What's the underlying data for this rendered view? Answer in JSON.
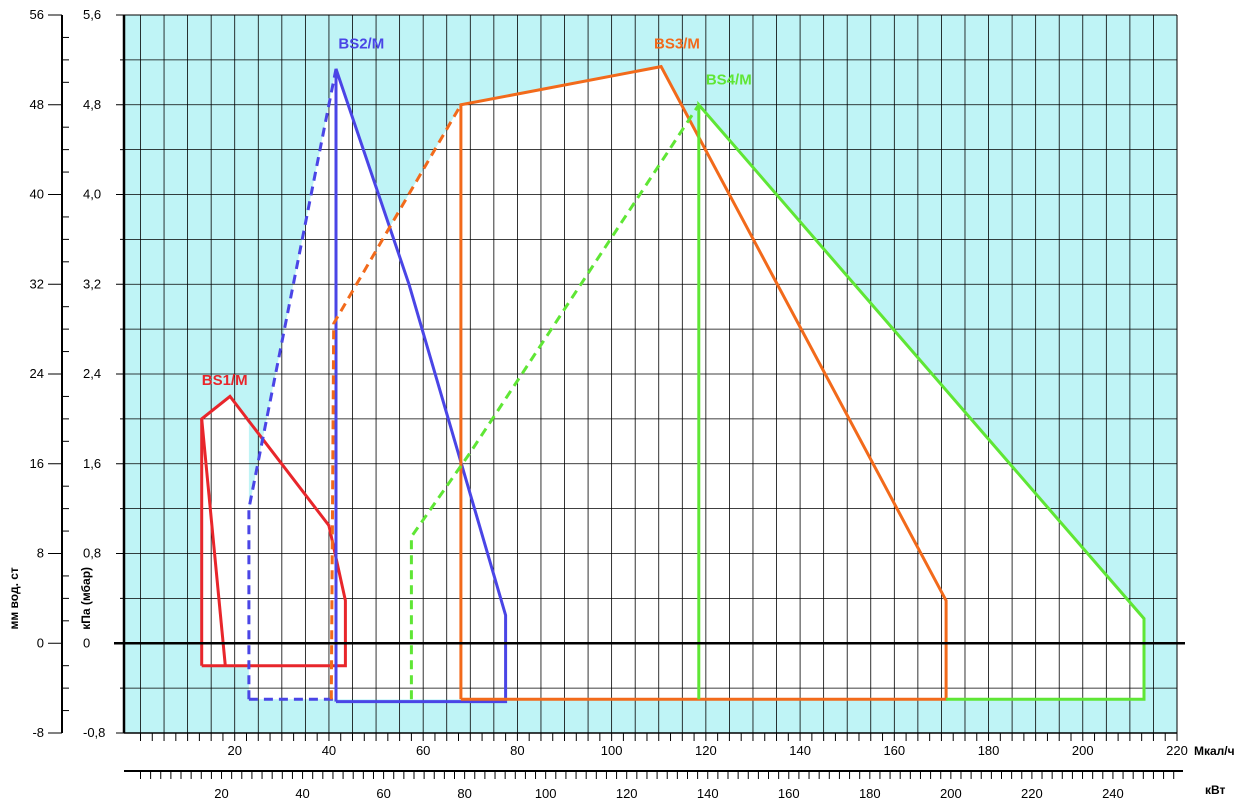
{
  "chart_data": {
    "type": "line",
    "x_primary": {
      "unit": "Мкал/ч",
      "range": [
        -3.5,
        220
      ],
      "ticks": [
        20,
        40,
        60,
        80,
        100,
        120,
        140,
        160,
        180,
        200
      ],
      "end_label": "220"
    },
    "x_secondary": {
      "unit": "кВт",
      "ticks": [
        20,
        40,
        60,
        80,
        100,
        120,
        140,
        160,
        180,
        200,
        220,
        240
      ]
    },
    "y_primary": {
      "label": "кПа (мбар)",
      "range": [
        -0.8,
        5.6
      ],
      "ticks": [
        "-0,8",
        "0",
        "0,8",
        "1,6",
        "2,4",
        "3,2",
        "4,0",
        "4,8",
        "5,6"
      ]
    },
    "y_secondary": {
      "label": "мм вод. ст",
      "ticks": [
        "-8",
        "0",
        "8",
        "16",
        "24",
        "32",
        "40",
        "48",
        "56"
      ]
    },
    "grid": true,
    "background_color": "#bff4f6",
    "series": [
      {
        "name": "BS1/M",
        "color": "#e8262b",
        "label_at": [
          13,
          2.3
        ],
        "solid": [
          [
            [
              13,
              -0.2
            ],
            [
              13,
              2.0
            ],
            [
              19,
              2.2
            ],
            [
              40,
              1.05
            ],
            [
              43.5,
              0.38
            ],
            [
              43.5,
              -0.2
            ],
            [
              13,
              -0.2
            ]
          ],
          [
            [
              13,
              2.0
            ],
            [
              18,
              -0.2
            ]
          ]
        ],
        "dashed": []
      },
      {
        "name": "BS2/M",
        "color": "#4a45e6",
        "label_at": [
          42,
          5.3
        ],
        "solid": [
          [
            [
              41.5,
              -0.52
            ],
            [
              41.5,
              5.12
            ],
            [
              57,
              3.2
            ],
            [
              77.5,
              0.25
            ],
            [
              77.5,
              -0.52
            ],
            [
              41.5,
              -0.52
            ]
          ]
        ],
        "dashed": [
          [
            [
              23,
              -0.5
            ],
            [
              23,
              1.2
            ],
            [
              41.5,
              5.12
            ]
          ],
          [
            [
              23,
              -0.5
            ],
            [
              41.5,
              -0.5
            ]
          ]
        ]
      },
      {
        "name": "BS3/M",
        "color": "#f26a1b",
        "label_at": [
          109,
          5.3
        ],
        "solid": [
          [
            [
              68,
              -0.5
            ],
            [
              68,
              4.8
            ],
            [
              110.5,
              5.14
            ],
            [
              171,
              0.38
            ],
            [
              171,
              -0.5
            ],
            [
              68,
              -0.5
            ]
          ]
        ],
        "dashed": [
          [
            [
              40.5,
              -0.5
            ],
            [
              41,
              2.85
            ],
            [
              68,
              4.8
            ]
          ]
        ]
      },
      {
        "name": "BS4/M",
        "color": "#5fe635",
        "label_at": [
          120,
          4.98
        ],
        "solid": [
          [
            [
              118.5,
              -0.5
            ],
            [
              118.5,
              4.8
            ],
            [
              213,
              0.22
            ],
            [
              213,
              -0.5
            ],
            [
              171,
              -0.5
            ]
          ]
        ],
        "dashed": [
          [
            [
              57.5,
              -0.5
            ],
            [
              57.5,
              0.95
            ],
            [
              70,
              1.7
            ],
            [
              118.5,
              4.8
            ]
          ]
        ]
      }
    ]
  }
}
